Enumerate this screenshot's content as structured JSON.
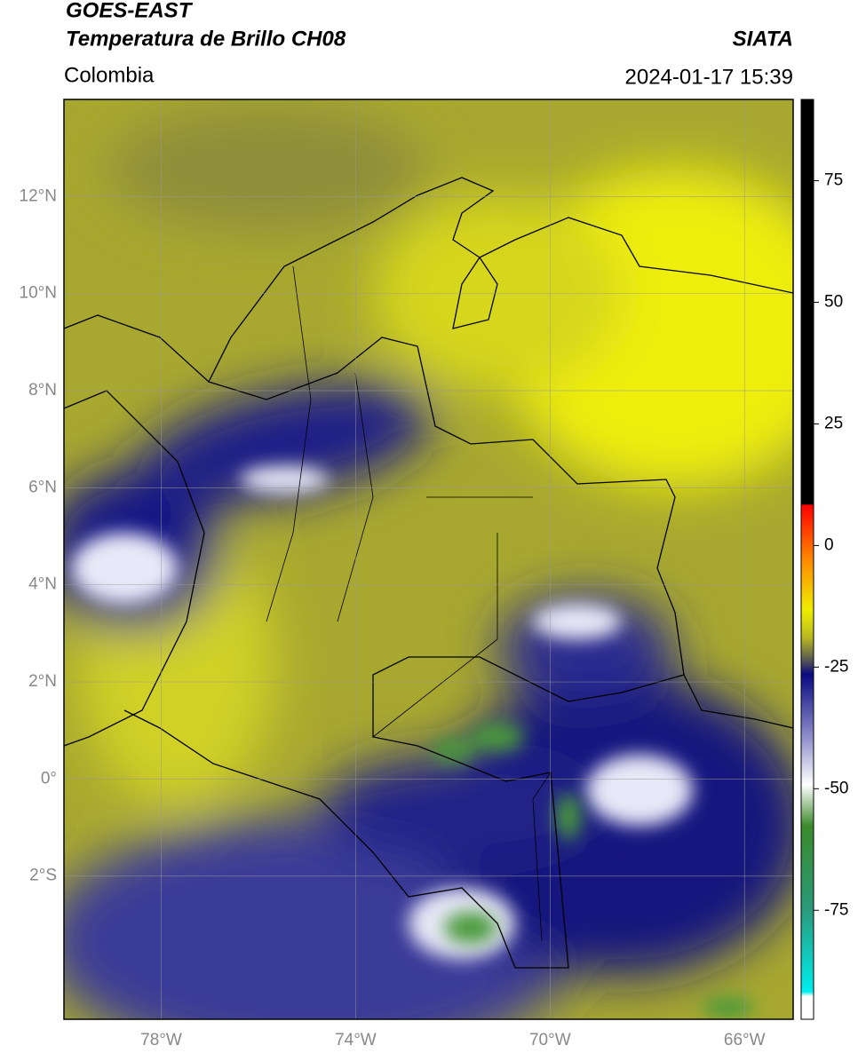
{
  "header": {
    "title": "GOES-EAST",
    "subtitle": "Temperatura de Brillo CH08",
    "source": "SIATA",
    "region": "Colombia",
    "datetime": "2024-01-17 15:39"
  },
  "map": {
    "lat_range": [
      -4.95,
      14
    ],
    "lon_range": [
      -80,
      -65
    ],
    "lat_ticks": [
      {
        "value": 12,
        "label": "12°N"
      },
      {
        "value": 10,
        "label": "10°N"
      },
      {
        "value": 8,
        "label": "8°N"
      },
      {
        "value": 6,
        "label": "6°N"
      },
      {
        "value": 4,
        "label": "4°N"
      },
      {
        "value": 2,
        "label": "2°N"
      },
      {
        "value": 0,
        "label": "0°"
      },
      {
        "value": -2,
        "label": "2°S"
      }
    ],
    "lon_ticks": [
      {
        "value": -78,
        "label": "78°W"
      },
      {
        "value": -74,
        "label": "74°W"
      },
      {
        "value": -70,
        "label": "70°W"
      },
      {
        "value": -66,
        "label": "66°W"
      }
    ]
  },
  "colorbar": {
    "range": [
      -97.4,
      91.7
    ],
    "ticks": [
      75,
      50,
      25,
      0,
      -25,
      -50,
      -75
    ]
  }
}
